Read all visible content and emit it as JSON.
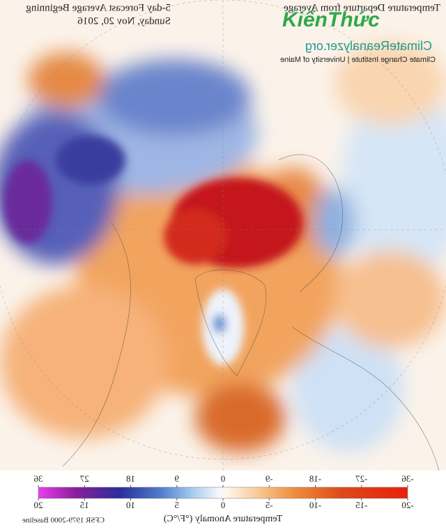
{
  "header": {
    "title": "5-day Forecast Average Beginning",
    "date": "Sunday, Nov 20, 2016",
    "product": "Temperature Departure from Average",
    "site": "ClimateReanalyzer.org",
    "institute": "Climate Change Institute | University of Maine"
  },
  "watermark": "KiếnThức",
  "colorbar": {
    "f_lim": [
      -36,
      36
    ],
    "f_ticks": [
      -36,
      -27,
      -18,
      -9,
      0,
      9,
      18,
      27,
      36
    ],
    "c_lim": [
      -20,
      20
    ],
    "c_ticks": [
      -20,
      -15,
      -10,
      -5,
      0,
      5,
      10,
      15,
      20
    ],
    "label": "Temperature Anomaly (°F/°C)",
    "baseline": "CFSR 1979-2000 Baseline"
  }
}
